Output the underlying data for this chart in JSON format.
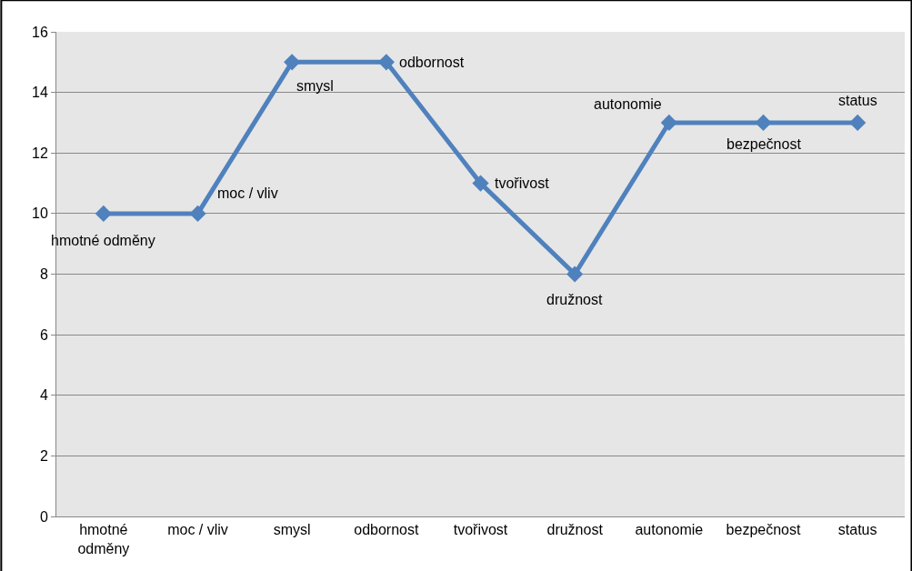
{
  "chart_data": {
    "type": "line",
    "categories": [
      "hmotné odměny",
      "moc / vliv",
      "smysl",
      "odbornost",
      "tvořivost",
      "družnost",
      "autonomie",
      "bezpečnost",
      "status"
    ],
    "series": [
      {
        "color": "#4f81bd",
        "values": [
          10,
          10,
          15,
          15,
          11,
          8,
          13,
          13,
          13
        ]
      }
    ],
    "ylim": [
      0,
      16
    ],
    "yticks": [
      0,
      2,
      4,
      6,
      8,
      10,
      12,
      14,
      16
    ],
    "grid": "y",
    "marker": "diamond",
    "line_style": "solid",
    "annotations": [
      {
        "text": "hmotné odměny",
        "x": "hmotné odměny",
        "y": 10
      },
      {
        "text": "moc / vliv",
        "x": "moc / vliv",
        "y": 10
      },
      {
        "text": "smysl",
        "x": "smysl",
        "y": 15
      },
      {
        "text": "odbornost",
        "x": "odbornost",
        "y": 15
      },
      {
        "text": "tvořivost",
        "x": "tvořivost",
        "y": 11
      },
      {
        "text": "družnost",
        "x": "družnost",
        "y": 8
      },
      {
        "text": "autonomie",
        "x": "autonomie",
        "y": 13
      },
      {
        "text": "bezpečnost",
        "x": "bezpečnost",
        "y": 13
      },
      {
        "text": "status",
        "x": "status",
        "y": 13
      }
    ]
  }
}
